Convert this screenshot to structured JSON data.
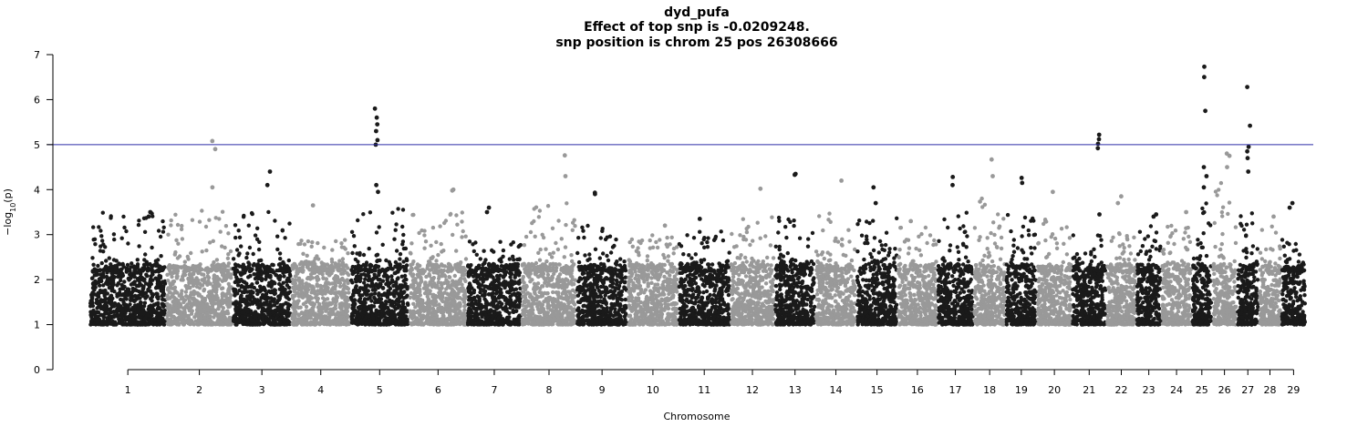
{
  "chart_data": {
    "type": "scatter",
    "title": [
      "dyd_pufa",
      "Effect of top snp is -0.0209248.",
      "snp position is chrom 25 pos 26308666"
    ],
    "xlabel": "Chromosome",
    "ylabel": "−log10(p)",
    "ylabel_parts": {
      "minus": "−",
      "log": "log",
      "sub": "10",
      "arg": "(p)"
    },
    "ylim": [
      0,
      7
    ],
    "yticks": [
      0,
      1,
      2,
      3,
      4,
      5,
      6,
      7
    ],
    "threshold": 5,
    "grid": false,
    "colors": {
      "odd": "#1a1a1a",
      "even": "#999999",
      "threshold": "#2c2ca8"
    },
    "chromosomes": [
      {
        "label": "1",
        "size": 158,
        "peak": 3.5,
        "top": [
          3.5,
          3.4
        ]
      },
      {
        "label": "2",
        "size": 136,
        "peak": 3.6,
        "top": [
          4.05,
          5.08,
          4.9
        ]
      },
      {
        "label": "3",
        "size": 121,
        "peak": 3.6,
        "top": [
          4.4,
          4.1
        ]
      },
      {
        "label": "4",
        "size": 121,
        "peak": 2.9,
        "top": [
          3.65
        ]
      },
      {
        "label": "5",
        "size": 121,
        "peak": 3.6,
        "top": [
          5.8,
          5.6,
          5.45,
          5.3,
          5.1,
          5.0,
          4.1,
          3.95
        ]
      },
      {
        "label": "6",
        "size": 119,
        "peak": 3.5,
        "top": [
          4.0,
          3.98
        ]
      },
      {
        "label": "7",
        "size": 112,
        "peak": 3.0,
        "top": [
          3.6,
          3.5
        ]
      },
      {
        "label": "8",
        "size": 113,
        "peak": 3.7,
        "top": [
          4.76,
          4.3
        ]
      },
      {
        "label": "9",
        "size": 105,
        "peak": 3.2,
        "top": [
          3.93,
          3.9
        ]
      },
      {
        "label": "10",
        "size": 104,
        "peak": 3.0,
        "top": [
          3.2
        ]
      },
      {
        "label": "11",
        "size": 107,
        "peak": 3.2,
        "top": [
          3.35
        ]
      },
      {
        "label": "12",
        "size": 91,
        "peak": 3.4,
        "top": [
          4.02
        ]
      },
      {
        "label": "13",
        "size": 84,
        "peak": 3.4,
        "top": [
          4.35,
          4.33
        ]
      },
      {
        "label": "14",
        "size": 84,
        "peak": 3.5,
        "top": [
          4.2
        ]
      },
      {
        "label": "15",
        "size": 85,
        "peak": 3.4,
        "top": [
          4.05,
          3.7
        ]
      },
      {
        "label": "16",
        "size": 81,
        "peak": 3.2,
        "top": [
          3.3
        ]
      },
      {
        "label": "17",
        "size": 75,
        "peak": 3.5,
        "top": [
          4.28,
          4.1
        ]
      },
      {
        "label": "18",
        "size": 66,
        "peak": 3.9,
        "top": [
          4.67,
          4.3
        ]
      },
      {
        "label": "19",
        "size": 64,
        "peak": 3.6,
        "top": [
          4.26,
          4.15
        ]
      },
      {
        "label": "20",
        "size": 72,
        "peak": 3.4,
        "top": [
          3.95
        ]
      },
      {
        "label": "21",
        "size": 71,
        "peak": 3.0,
        "top": [
          5.22,
          5.12,
          5.02,
          4.92,
          3.45
        ]
      },
      {
        "label": "22",
        "size": 61,
        "peak": 3.1,
        "top": [
          3.85,
          3.7
        ]
      },
      {
        "label": "23",
        "size": 52,
        "peak": 3.2,
        "top": [
          3.45,
          3.4
        ]
      },
      {
        "label": "24",
        "size": 62,
        "peak": 3.2,
        "top": [
          3.5
        ]
      },
      {
        "label": "25",
        "size": 42,
        "peak": 3.8,
        "top": [
          6.73,
          6.5,
          5.75,
          4.5,
          4.3,
          4.05
        ]
      },
      {
        "label": "26",
        "size": 51,
        "peak": 4.4,
        "top": [
          4.8,
          4.75,
          4.5
        ]
      },
      {
        "label": "27",
        "size": 45,
        "peak": 3.6,
        "top": [
          6.28,
          5.42,
          4.95,
          4.85,
          4.7,
          4.4
        ]
      },
      {
        "label": "28",
        "size": 46,
        "peak": 3.3,
        "top": [
          3.4
        ]
      },
      {
        "label": "29",
        "size": 51,
        "peak": 3.0,
        "top": [
          3.7,
          3.6
        ]
      }
    ]
  }
}
